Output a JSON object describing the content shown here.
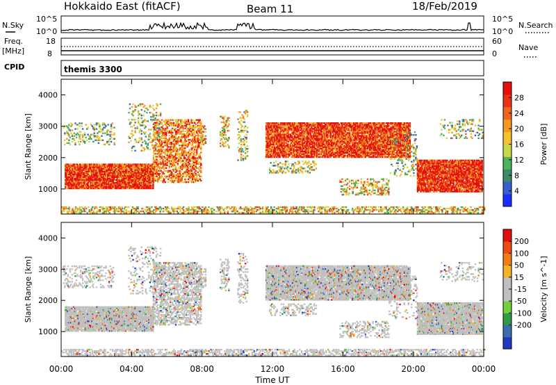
{
  "header": {
    "station": "Hokkaido East (fitACF)",
    "beam": "Beam 11",
    "date": "18/Feb/2019"
  },
  "noise_panel": {
    "left_label": "N.Sky",
    "right_label": "N.Search",
    "left_ticks": [
      "10^5",
      "10^0"
    ],
    "right_ticks": [
      "10^5",
      "10^0"
    ]
  },
  "freq_panel": {
    "left_label_1": "Freq.",
    "left_label_2": "[MHz]",
    "right_label": "Nave",
    "left_ticks": [
      "18",
      "8"
    ],
    "right_ticks": [
      "60",
      "0"
    ]
  },
  "cpid": {
    "label": "CPID",
    "value": "themis 3300"
  },
  "chart_data": [
    {
      "type": "heatmap",
      "title": "",
      "xlabel": "Time UT",
      "ylabel": "Slant Range [km]",
      "x_ticks": [
        "00:00",
        "04:00",
        "08:00",
        "12:00",
        "16:00",
        "20:00",
        "00:00"
      ],
      "y_ticks": [
        1000,
        2000,
        3000,
        4000
      ],
      "ylim": [
        200,
        4500
      ],
      "colorbar": {
        "label": "Power [dB]",
        "ticks": [
          4,
          8,
          12,
          16,
          20,
          24,
          28
        ],
        "range": [
          0,
          32
        ],
        "colors": [
          "#1a2fff",
          "#3a5fcf",
          "#3e8a6a",
          "#4fb35a",
          "#c8d84a",
          "#f5c230",
          "#f59a20",
          "#f0651d",
          "#e83318",
          "#e50e0e"
        ]
      }
    },
    {
      "type": "heatmap",
      "title": "",
      "xlabel": "Time UT",
      "ylabel": "Slant Range [km]",
      "x_ticks": [
        "00:00",
        "04:00",
        "08:00",
        "12:00",
        "16:00",
        "20:00",
        "00:00"
      ],
      "y_ticks": [
        1000,
        2000,
        3000,
        4000
      ],
      "ylim": [
        200,
        4500
      ],
      "colorbar": {
        "label": "Velocity [m s^-1]",
        "ticks": [
          "200",
          "100",
          "50",
          "15",
          "-15",
          "-50",
          "-100",
          "-200"
        ],
        "colors": [
          "#2438c0",
          "#3a6fae",
          "#2f9a4a",
          "#74cf3c",
          "#c0c0c0",
          "#c0c0c0",
          "#f2b22a",
          "#f07c18",
          "#ee4b12",
          "#e01010"
        ]
      }
    }
  ]
}
